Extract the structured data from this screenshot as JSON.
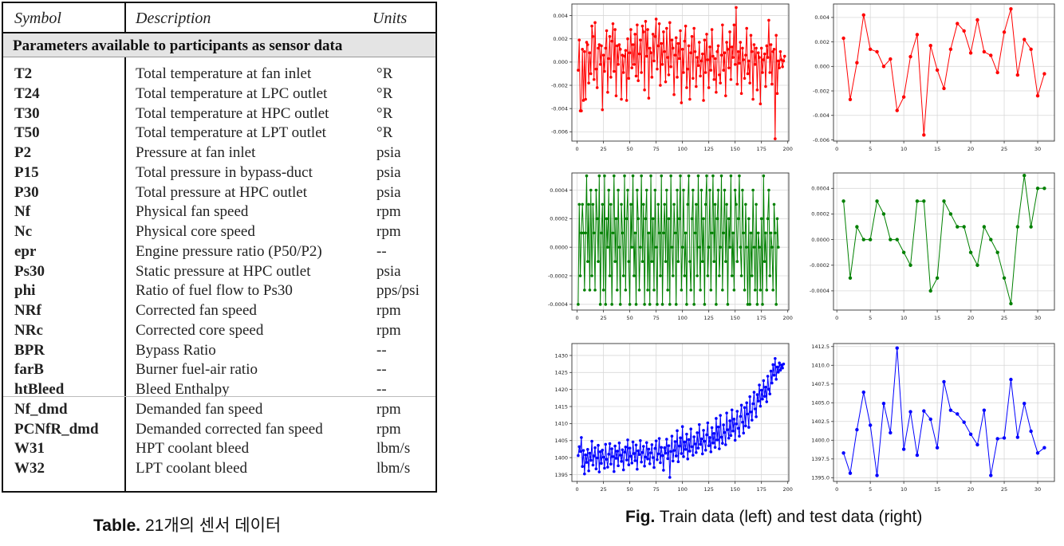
{
  "table": {
    "headers": {
      "symbol": "Symbol",
      "description": "Description",
      "units": "Units"
    },
    "section_title": "Parameters available to participants as sensor data",
    "rows": [
      {
        "symbol": "T2",
        "description": "Total temperature at fan inlet",
        "units": "°R"
      },
      {
        "symbol": "T24",
        "description": "Total temperature at LPC outlet",
        "units": "°R"
      },
      {
        "symbol": "T30",
        "description": "Total temperature at HPC outlet",
        "units": "°R"
      },
      {
        "symbol": "T50",
        "description": "Total temperature at LPT outlet",
        "units": "°R"
      },
      {
        "symbol": "P2",
        "description": "Pressure at fan inlet",
        "units": "psia"
      },
      {
        "symbol": "P15",
        "description": "Total pressure in bypass-duct",
        "units": "psia"
      },
      {
        "symbol": "P30",
        "description": "Total pressure at HPC outlet",
        "units": "psia"
      },
      {
        "symbol": "Nf",
        "description": "Physical fan speed",
        "units": "rpm"
      },
      {
        "symbol": "Nc",
        "description": "Physical core speed",
        "units": "rpm"
      },
      {
        "symbol": "epr",
        "description": "Engine pressure ratio (P50/P2)",
        "units": "--"
      },
      {
        "symbol": "Ps30",
        "description": "Static pressure at HPC outlet",
        "units": "psia"
      },
      {
        "symbol": "phi",
        "description": "Ratio of fuel flow to Ps30",
        "units": "pps/psi"
      },
      {
        "symbol": "NRf",
        "description": "Corrected fan speed",
        "units": "rpm"
      },
      {
        "symbol": "NRc",
        "description": "Corrected core speed",
        "units": "rpm"
      },
      {
        "symbol": "BPR",
        "description": "Bypass Ratio",
        "units": "--"
      },
      {
        "symbol": "farB",
        "description": "Burner fuel-air ratio",
        "units": "--"
      },
      {
        "symbol": "htBleed",
        "description": "Bleed Enthalpy",
        "units": "--"
      },
      {
        "symbol": "Nf_dmd",
        "description": "Demanded fan speed",
        "units": "rpm"
      },
      {
        "symbol": "PCNfR_dmd",
        "description": "Demanded corrected fan speed",
        "units": "rpm"
      },
      {
        "symbol": "W31",
        "description": "HPT coolant bleed",
        "units": "lbm/s"
      },
      {
        "symbol": "W32",
        "description": "LPT coolant bleed",
        "units": "lbm/s"
      }
    ],
    "caption_bold": "Table.",
    "caption_text": " 21개의 센서 데이터"
  },
  "figure": {
    "caption_bold": "Fig.",
    "caption_text": " Train data (left) and test data (right)"
  },
  "chart_data": [
    {
      "type": "line",
      "color": "#ff0000",
      "grid": true,
      "xlim": [
        -5,
        201
      ],
      "ylim": [
        -0.0068,
        0.005
      ],
      "xticks": [
        "0",
        "25",
        "50",
        "75",
        "100",
        "125",
        "150",
        "175",
        "200"
      ],
      "xtick_values": [
        0,
        25,
        50,
        75,
        100,
        125,
        150,
        175,
        200
      ],
      "yticks": [
        "-0.006",
        "-0.004",
        "-0.002",
        "0.000",
        "0.002",
        "0.004"
      ],
      "ytick_values": [
        -0.006,
        -0.004,
        -0.002,
        0,
        0.002,
        0.004
      ],
      "x_start": 1,
      "values": [
        -0.0007,
        0.0019,
        -0.0042,
        -0.0042,
        0.0011,
        -0.0033,
        0.0009,
        -0.0032,
        0.0017,
        0.0015,
        -0.0018,
        0.0008,
        -0.001,
        0.0031,
        0.0022,
        -0.0015,
        0.0034,
        -0.0006,
        -0.0022,
        0.0012,
        0.0015,
        -0.0002,
        0.0014,
        -0.0041,
        0.0006,
        -0.0008,
        0.0012,
        0.0027,
        -0.0026,
        0.0003,
        0.0022,
        -0.0013,
        0.0018,
        0.0033,
        -0.0008,
        0.0028,
        -0.0029,
        0.0014,
        -0.0002,
        0.0015,
        0.0011,
        -0.0032,
        0.0006,
        -0.0009,
        0.0005,
        0.001,
        -0.0033,
        0.002,
        -0.0014,
        0.0008,
        0.0028,
        -0.0005,
        0.0015,
        -0.0002,
        0.0024,
        -0.0012,
        0.0032,
        -0.0016,
        0.0007,
        0.0019,
        -0.0009,
        0.0031,
        0.0026,
        -0.0024,
        0.0035,
        0.0005,
        0.0028,
        -0.0031,
        0.0012,
        0.0008,
        -0.0013,
        0.0024,
        0.0001,
        0.0022,
        0.0037,
        -0.0006,
        0.0014,
        0.0033,
        -0.002,
        0.0016,
        -0.0002,
        0.0026,
        0.0009,
        -0.0017,
        0.0029,
        0.0004,
        -0.0011,
        0.0034,
        -0.0004,
        0.0019,
        0.0012,
        -0.0028,
        0.0006,
        0.0021,
        -0.0013,
        0.0016,
        0.0003,
        0.0027,
        -0.0035,
        0.0011,
        -0.0009,
        0.0018,
        0.0031,
        -0.0022,
        -0.0006,
        0.0014,
        -0.0032,
        0.0008,
        0.0022,
        -0.0014,
        0.0029,
        0.0009,
        -0.0021,
        0.0004,
        -0.0003,
        0.0017,
        -0.0012,
        0.0001,
        0.0007,
        -0.0033,
        0.0019,
        -0.0009,
        0.0024,
        0.0002,
        -0.0022,
        0.0013,
        -0.0007,
        0.0028,
        0.0005,
        -0.0015,
        0.0003,
        -0.0026,
        0.0009,
        0.0014,
        -0.0011,
        -0.0018,
        0.0006,
        0.0032,
        -0.0007,
        0.0008,
        -0.0029,
        0.0017,
        0.0011,
        -0.0005,
        0.0026,
        -0.0015,
        0.0013,
        0.0004,
        0.0032,
        -0.0002,
        0.0047,
        -0.0019,
        0.0009,
        -0.0001,
        0.0017,
        -0.0027,
        0.0012,
        0.0002,
        -0.0014,
        0.0006,
        0.0029,
        -0.001,
        0.0001,
        -0.0018,
        0.0023,
        0.0009,
        -0.0032,
        0.0015,
        -0.0002,
        0.0012,
        -0.0024,
        0.0008,
        0.0004,
        -0.0036,
        0.0012,
        -0.0009,
        0.0002,
        0.0007,
        -0.0021,
        0.0014,
        0.0004,
        0.0036,
        -0.0009,
        0.0015,
        -0.0019,
        0.0009,
        0.0011,
        -0.0066,
        0.0023,
        -0.0027,
        0.0001,
        -0.0005,
        0.0009,
        0.0002,
        -0.0004,
        0.0001,
        0.0005
      ]
    },
    {
      "type": "line",
      "color": "#ff0000",
      "grid": true,
      "xlim": [
        -0.5,
        32.5
      ],
      "ylim": [
        -0.0061,
        0.0051
      ],
      "xticks": [
        "0",
        "5",
        "10",
        "15",
        "20",
        "25",
        "30"
      ],
      "xtick_values": [
        0,
        5,
        10,
        15,
        20,
        25,
        30
      ],
      "yticks": [
        "-0.006",
        "-0.004",
        "-0.002",
        "0.000",
        "0.002",
        "0.004"
      ],
      "ytick_values": [
        -0.006,
        -0.004,
        -0.002,
        0,
        0.002,
        0.004
      ],
      "x_start": 1,
      "values": [
        0.0023,
        -0.0027,
        0.0003,
        0.0042,
        0.0014,
        0.0012,
        0.0,
        0.0006,
        -0.0036,
        -0.0025,
        0.0008,
        0.0026,
        -0.0056,
        0.0017,
        -0.0003,
        -0.0018,
        0.0014,
        0.0035,
        0.0029,
        0.0011,
        0.0038,
        0.0012,
        0.0009,
        -0.0005,
        0.0028,
        0.0047,
        -0.0007,
        0.0022,
        0.0014,
        -0.0024,
        -0.0006
      ]
    },
    {
      "type": "line",
      "color": "#008000",
      "grid": true,
      "xlim": [
        -5,
        201
      ],
      "ylim": [
        -0.00044,
        0.00052
      ],
      "xticks": [
        "0",
        "25",
        "50",
        "75",
        "100",
        "125",
        "150",
        "175",
        "200"
      ],
      "xtick_values": [
        0,
        25,
        50,
        75,
        100,
        125,
        150,
        175,
        200
      ],
      "yticks": [
        "-0.0004",
        "-0.0002",
        "0.0000",
        "0.0002",
        "0.0004"
      ],
      "ytick_values": [
        -0.0004,
        -0.0002,
        0,
        0.0002,
        0.0004
      ],
      "x_start": 1,
      "values": [
        -0.0004,
        0.0003,
        -0.0002,
        0.0001,
        0.0003,
        0.0001,
        -0.0003,
        0.0001,
        0.0005,
        -0.0001,
        0.0003,
        -0.0003,
        0.0004,
        -0.0002,
        0.0003,
        0.0001,
        -0.0003,
        0.0004,
        0.0002,
        -0.0001,
        0.0005,
        -0.0004,
        0.0001,
        0.0003,
        -0.0003,
        0.0005,
        -0.0004,
        0.0002,
        0.0,
        0.0004,
        -0.0002,
        0.0003,
        -0.0004,
        0.0001,
        0.0005,
        -0.0001,
        0.0002,
        -0.0003,
        0.0004,
        0.0,
        -0.0004,
        0.0003,
        0.0001,
        -0.0002,
        0.0005,
        -0.0003,
        0.0002,
        0.0004,
        -0.0001,
        -0.0004,
        0.0003,
        0.0,
        0.0005,
        -0.0002,
        0.0001,
        -0.0004,
        0.0004,
        0.0002,
        -0.0003,
        0.0,
        0.0005,
        -0.0001,
        0.0003,
        -0.0004,
        0.0002,
        0.0004,
        -0.0003,
        0.0001,
        -0.0004,
        0.0005,
        -0.0001,
        0.0002,
        -0.0003,
        0.0004,
        0.0,
        -0.0004,
        0.0003,
        0.0001,
        -0.0002,
        0.0005,
        -0.0004,
        0.0001,
        0.0003,
        -0.0001,
        0.0004,
        -0.0003,
        0.0002,
        -0.0004,
        0.0005,
        0.0,
        -0.0002,
        0.0003,
        0.0001,
        -0.0004,
        0.0004,
        -0.0001,
        0.0002,
        0.0005,
        -0.0003,
        0.0,
        0.0004,
        -0.0002,
        0.0001,
        -0.0004,
        0.0003,
        0.0005,
        -0.0001,
        -0.0003,
        0.0002,
        0.0004,
        -0.0004,
        0.0001,
        0.0003,
        -0.0002,
        0.0005,
        0.0,
        -0.0003,
        0.0004,
        -0.0001,
        0.0002,
        -0.0004,
        0.0003,
        0.0005,
        -0.0002,
        0.0,
        0.0004,
        -0.0003,
        0.0001,
        0.0005,
        -0.0001,
        0.0003,
        -0.0004,
        0.0002,
        0.0004,
        -0.0002,
        0.0,
        0.0005,
        -0.0003,
        0.0001,
        0.0004,
        -0.0001,
        0.0003,
        -0.0004,
        0.0002,
        0.0,
        0.0005,
        -0.0002,
        0.0001,
        -0.0003,
        0.0004,
        0.0003,
        -0.0001,
        0.0002,
        0.0005,
        0.0,
        -0.0002,
        0.0004,
        0.0001,
        -0.0003,
        0.0003,
        0.0,
        -0.0004,
        0.0002,
        -0.0004,
        0.0001,
        -0.0002,
        0.0004,
        0.0,
        -0.0003,
        0.0003,
        -0.0004,
        0.0001,
        0.0,
        -0.0003,
        0.0002,
        -0.0004,
        0.0005,
        -0.0001,
        0.0001,
        -0.0003,
        0.0002,
        0.0004,
        -0.0002,
        0.0001,
        0.0,
        -0.0003,
        0.0003,
        0.0001,
        -0.0004,
        0.0002,
        0.0
      ]
    },
    {
      "type": "line",
      "color": "#008000",
      "grid": true,
      "xlim": [
        -0.5,
        32.5
      ],
      "ylim": [
        -0.00055,
        0.00052
      ],
      "xticks": [
        "0",
        "5",
        "10",
        "15",
        "20",
        "25",
        "30"
      ],
      "xtick_values": [
        0,
        5,
        10,
        15,
        20,
        25,
        30
      ],
      "yticks": [
        "-0.0004",
        "-0.0002",
        "0.0000",
        "0.0002",
        "0.0004"
      ],
      "ytick_values": [
        -0.0004,
        -0.0002,
        0,
        0.0002,
        0.0004
      ],
      "x_start": 1,
      "values": [
        0.0003,
        -0.0003,
        0.0001,
        0.0,
        0.0,
        0.0003,
        0.0002,
        0.0,
        0.0,
        -0.0001,
        -0.0002,
        0.0003,
        0.0003,
        -0.0004,
        -0.0003,
        0.0003,
        0.0002,
        0.0001,
        0.0001,
        -0.0001,
        -0.0002,
        0.0001,
        0.0,
        -0.0001,
        -0.0003,
        -0.0005,
        0.0001,
        0.0005,
        0.0001,
        0.0004,
        0.0004
      ]
    },
    {
      "type": "line",
      "color": "#0000ff",
      "grid": true,
      "xlim": [
        -5,
        201
      ],
      "ylim": [
        1393,
        1433.5
      ],
      "xticks": [
        "0",
        "25",
        "50",
        "75",
        "100",
        "125",
        "150",
        "175",
        "200"
      ],
      "xtick_values": [
        0,
        25,
        50,
        75,
        100,
        125,
        150,
        175,
        200
      ],
      "yticks": [
        "1395",
        "1400",
        "1405",
        "1410",
        "1415",
        "1420",
        "1425",
        "1430"
      ],
      "ytick_values": [
        1395,
        1400,
        1405,
        1410,
        1415,
        1420,
        1425,
        1430
      ],
      "x_start": 1,
      "values": [
        1400.6,
        1403.2,
        1401.8,
        1405.9,
        1397.4,
        1402.1,
        1395.2,
        1400.8,
        1398.6,
        1402.4,
        1396.1,
        1401.3,
        1399.2,
        1404.8,
        1397.8,
        1400.5,
        1402.9,
        1396.7,
        1399.9,
        1403.6,
        1395.8,
        1401.7,
        1398.3,
        1402.2,
        1400.1,
        1396.9,
        1403.9,
        1399.5,
        1397.2,
        1401.0,
        1404.1,
        1398.1,
        1402.6,
        1400.3,
        1395.9,
        1403.4,
        1399.8,
        1401.9,
        1397.6,
        1404.3,
        1400.7,
        1398.9,
        1402.3,
        1396.4,
        1401.6,
        1403.1,
        1399.3,
        1405.2,
        1397.9,
        1402.8,
        1400.4,
        1398.4,
        1404.6,
        1401.2,
        1399.1,
        1403.7,
        1396.6,
        1402.0,
        1400.9,
        1405.0,
        1398.7,
        1401.5,
        1403.3,
        1397.5,
        1400.2,
        1404.4,
        1399.6,
        1402.5,
        1398.2,
        1401.4,
        1403.8,
        1400.0,
        1397.1,
        1402.7,
        1404.9,
        1399.4,
        1401.1,
        1405.6,
        1398.5,
        1403.0,
        1400.6,
        1396.3,
        1402.9,
        1401.3,
        1405.4,
        1399.7,
        1403.5,
        1394.2,
        1401.8,
        1406.3,
        1399.0,
        1402.1,
        1404.7,
        1400.5,
        1407.9,
        1398.8,
        1403.4,
        1405.8,
        1401.2,
        1409.1,
        1400.3,
        1404.6,
        1402.4,
        1406.9,
        1399.6,
        1405.3,
        1401.9,
        1408.4,
        1403.2,
        1400.7,
        1406.1,
        1404.0,
        1401.5,
        1407.3,
        1402.8,
        1409.7,
        1403.9,
        1405.5,
        1401.1,
        1408.0,
        1404.8,
        1402.2,
        1406.7,
        1410.2,
        1403.5,
        1405.9,
        1401.7,
        1408.8,
        1404.3,
        1407.1,
        1403.0,
        1411.5,
        1405.2,
        1409.0,
        1402.6,
        1412.4,
        1406.0,
        1404.2,
        1409.6,
        1407.4,
        1403.8,
        1413.1,
        1408.2,
        1405.7,
        1410.8,
        1406.5,
        1414.0,
        1407.8,
        1411.3,
        1405.1,
        1409.9,
        1413.6,
        1408.6,
        1406.3,
        1412.1,
        1415.4,
        1410.4,
        1407.2,
        1414.7,
        1409.3,
        1416.1,
        1412.8,
        1408.9,
        1417.9,
        1413.4,
        1411.0,
        1415.8,
        1419.2,
        1414.3,
        1412.0,
        1418.5,
        1416.6,
        1421.3,
        1415.1,
        1419.8,
        1417.2,
        1422.6,
        1418.0,
        1420.7,
        1416.4,
        1423.9,
        1420.1,
        1418.7,
        1425.4,
        1421.9,
        1427.3,
        1424.2,
        1429.1,
        1423.0,
        1426.6,
        1425.1,
        1427.8,
        1425.7,
        1427.2,
        1426.3,
        1427.5
      ]
    },
    {
      "type": "line",
      "color": "#0000ff",
      "grid": true,
      "xlim": [
        -0.5,
        32.5
      ],
      "ylim": [
        1394.5,
        1412.9
      ],
      "xticks": [
        "0",
        "5",
        "10",
        "15",
        "20",
        "25",
        "30"
      ],
      "xtick_values": [
        0,
        5,
        10,
        15,
        20,
        25,
        30
      ],
      "yticks": [
        "1395.0",
        "1397.5",
        "1400.0",
        "1402.5",
        "1405.0",
        "1407.5",
        "1410.0",
        "1412.5"
      ],
      "ytick_values": [
        1395,
        1397.5,
        1400,
        1402.5,
        1405,
        1407.5,
        1410,
        1412.5
      ],
      "x_start": 1,
      "values": [
        1398.3,
        1395.6,
        1401.4,
        1406.4,
        1402.0,
        1395.3,
        1404.9,
        1401.0,
        1412.3,
        1398.8,
        1403.8,
        1398.0,
        1403.9,
        1402.8,
        1399.0,
        1407.8,
        1404.0,
        1403.5,
        1402.4,
        1400.8,
        1399.4,
        1404.0,
        1395.3,
        1400.2,
        1400.3,
        1408.1,
        1400.4,
        1404.9,
        1401.2,
        1398.3,
        1399.0
      ]
    }
  ]
}
